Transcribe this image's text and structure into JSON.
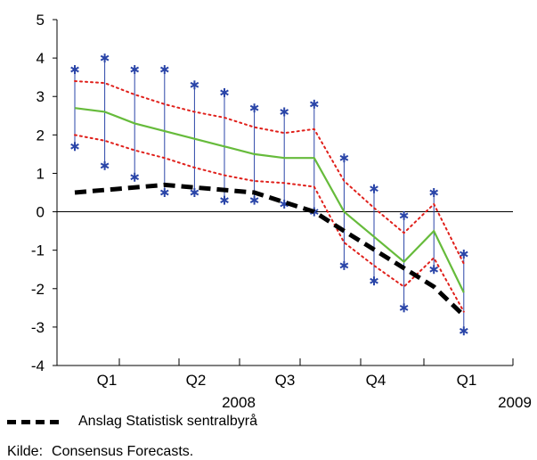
{
  "chart_data": {
    "type": "line",
    "ylim": [
      -4,
      5
    ],
    "yticks": [
      5,
      4,
      3,
      2,
      1,
      0,
      -1,
      -2,
      -3,
      -4
    ],
    "quarter_labels": [
      "Q1",
      "Q2",
      "Q3",
      "Q4",
      "Q1"
    ],
    "year_labels": [
      "2008",
      "2009"
    ],
    "forecast_months": 14,
    "ranges": {
      "max": [
        3.7,
        4.0,
        3.7,
        3.7,
        3.3,
        3.1,
        2.7,
        2.6,
        2.8,
        1.4,
        0.6,
        -0.1,
        0.5,
        -1.1
      ],
      "min": [
        1.7,
        1.2,
        0.9,
        0.5,
        0.5,
        0.3,
        0.3,
        0.2,
        0.0,
        -1.4,
        -1.8,
        -2.5,
        -1.5,
        -3.1
      ]
    },
    "series": [
      {
        "key": "mean",
        "color": "#66bb3b",
        "values": [
          2.7,
          2.6,
          2.3,
          2.1,
          1.9,
          1.7,
          1.5,
          1.4,
          1.4,
          0.0,
          -0.65,
          -1.3,
          -0.5,
          -2.1
        ]
      },
      {
        "key": "upper_band",
        "color": "#e0201b",
        "values": [
          3.4,
          3.35,
          3.05,
          2.8,
          2.6,
          2.45,
          2.2,
          2.05,
          2.15,
          0.8,
          0.1,
          -0.55,
          0.2,
          -1.35
        ]
      },
      {
        "key": "lower_band",
        "color": "#e0201b",
        "values": [
          2.0,
          1.85,
          1.6,
          1.4,
          1.15,
          0.95,
          0.8,
          0.75,
          0.65,
          -0.8,
          -1.4,
          -1.95,
          -1.2,
          -2.6
        ]
      },
      {
        "key": "ssb",
        "name": "Anslag Statistisk sentralbyrå",
        "color": "#000000",
        "x": [
          1,
          4,
          7,
          9,
          10,
          13,
          14
        ],
        "values": [
          0.5,
          0.7,
          0.5,
          0.0,
          -0.5,
          -1.95,
          -2.7
        ]
      }
    ],
    "marker_color": "#2a45a8"
  },
  "legend": {
    "label": "Anslag Statistisk sentralbyrå"
  },
  "source": {
    "prefix": "Kilde:",
    "text": "Consensus Forecasts."
  }
}
